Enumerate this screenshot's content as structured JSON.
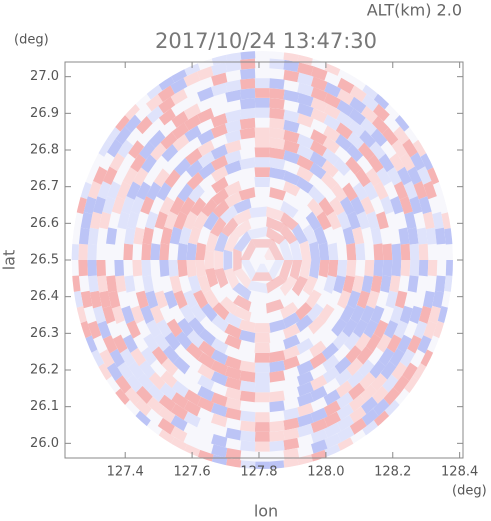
{
  "chart_data": {
    "type": "radar-ppi",
    "title": "2017/10/24 13:47:30",
    "subtitle": "ALT(km)  2.0",
    "y_unit": "(deg)",
    "x_unit": "(deg)",
    "xlabel": "lon",
    "ylabel": "lat",
    "xlim": [
      127.22,
      128.41
    ],
    "ylim": [
      25.96,
      27.04
    ],
    "xticks": [
      127.4,
      127.6,
      127.8,
      {
        "value": 128,
        "label": "128.0"
      },
      128.2,
      128.4
    ],
    "yticks": [
      {
        "value": 26,
        "label": "26.0"
      },
      26.1,
      26.2,
      26.3,
      26.4,
      26.5,
      26.6,
      26.7,
      26.8,
      26.9,
      {
        "value": 27,
        "label": "27.0"
      }
    ],
    "center": [
      127.81,
      26.5
    ],
    "radius_deg": 0.57,
    "colors": [
      "#f6b4b4",
      "#bcc4f6",
      "#fbdada",
      "#dfe3fb"
    ]
  }
}
